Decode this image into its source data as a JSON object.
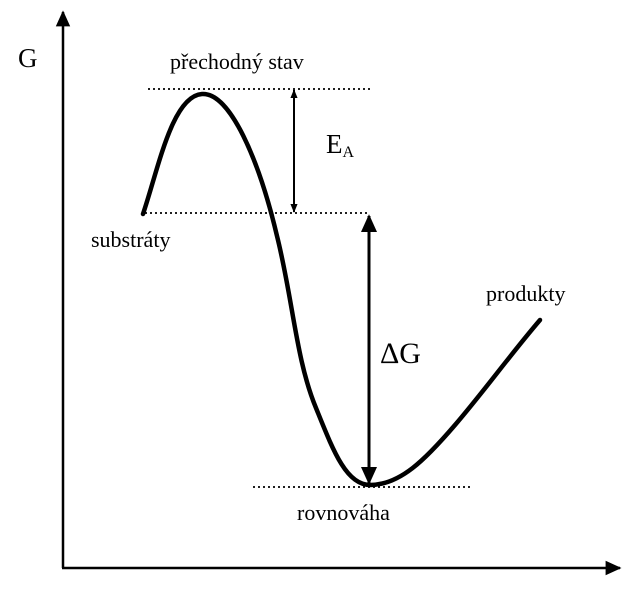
{
  "axis": {
    "y_label": "G"
  },
  "labels": {
    "transition_state": "přechodný stav",
    "substrates": "substráty",
    "products": "produkty",
    "equilibrium": "rovnováha",
    "activation_energy_main": "E",
    "activation_energy_sub": "A",
    "delta_g_symbol": "Δ",
    "delta_g_letter": "G"
  },
  "colors": {
    "stroke": "#000000",
    "background": "#ffffff"
  }
}
